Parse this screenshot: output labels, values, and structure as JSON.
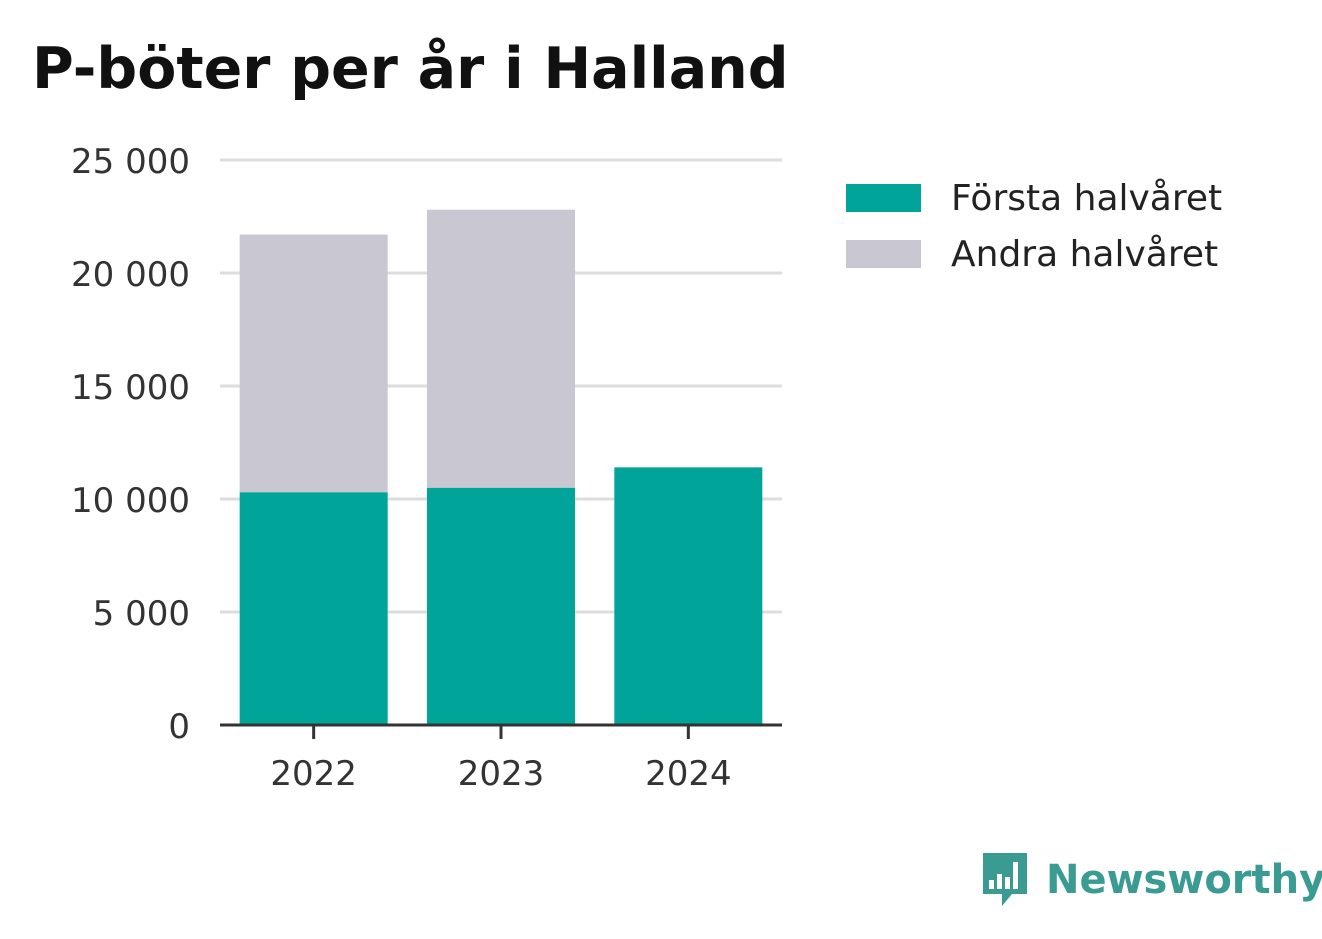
{
  "title": "P-böter per år i Halland",
  "colors": {
    "first_half": "#00a499",
    "second_half": "#c8c7d2",
    "gridline": "#dddddd",
    "axis": "#333333",
    "brand": "#3a9b92"
  },
  "legend": {
    "position": "top-right",
    "items": [
      {
        "label": "Första halvåret",
        "color": "#00a499"
      },
      {
        "label": "Andra halvåret",
        "color": "#c8c7d2"
      }
    ]
  },
  "chart_data": {
    "type": "bar",
    "stacked": true,
    "title": "P-böter per år i Halland",
    "xlabel": "",
    "ylabel": "",
    "categories": [
      "2022",
      "2023",
      "2024"
    ],
    "series": [
      {
        "name": "Första halvåret",
        "values": [
          10300,
          10500,
          11400
        ]
      },
      {
        "name": "Andra halvåret",
        "values": [
          11400,
          12300,
          0
        ]
      }
    ],
    "ylim": [
      0,
      25000
    ],
    "yticks": [
      0,
      5000,
      10000,
      15000,
      20000,
      25000
    ],
    "ytick_labels": [
      "0",
      "5 000",
      "10 000",
      "15 000",
      "20 000",
      "25 000"
    ],
    "grid": true
  },
  "brand": {
    "name": "Newsworthy",
    "icon": "newsworthy-logo-icon"
  }
}
